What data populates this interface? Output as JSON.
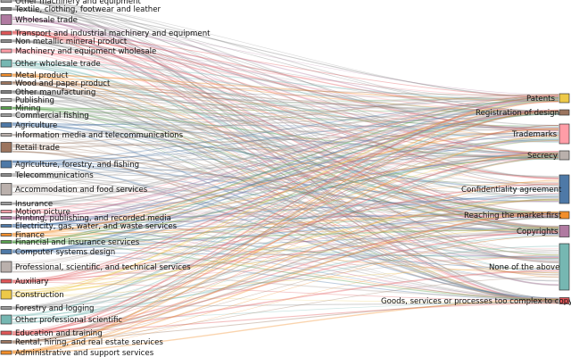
{
  "diagram": {
    "type": "sankey",
    "left_nodes": [
      {
        "label": "Other machinery and equipment",
        "color": "#9c9c9c"
      },
      {
        "label": "Textile, clothing, footwear and leather",
        "color": "#7a7a7a"
      },
      {
        "label": "Wholesale trade",
        "color": "#b07aa1"
      },
      {
        "label": "Transport and industrial machinery and equipment",
        "color": "#e15759"
      },
      {
        "label": "Non metallic mineral product",
        "color": "#8c8c8c"
      },
      {
        "label": "Machinery and equipment wholesale",
        "color": "#ff9da7"
      },
      {
        "label": "Other wholesale trade",
        "color": "#76b7b2"
      },
      {
        "label": "Metal product",
        "color": "#f28e2b"
      },
      {
        "label": "Wood and paper product",
        "color": "#9c755f"
      },
      {
        "label": "Other manufacturing",
        "color": "#7f7f7f"
      },
      {
        "label": "Publishing",
        "color": "#b5b5b5"
      },
      {
        "label": "Mining",
        "color": "#59a14f"
      },
      {
        "label": "Commercial fishing",
        "color": "#9d9d9d"
      },
      {
        "label": "Agriculture",
        "color": "#4e79a7"
      },
      {
        "label": "Information media and telecommunications",
        "color": "#bab0ac"
      },
      {
        "label": "Retail trade",
        "color": "#9c755f"
      },
      {
        "label": "Agriculture, forestry, and fishing",
        "color": "#4e79a7"
      },
      {
        "label": "Telecommunications",
        "color": "#8c8c8c"
      },
      {
        "label": "Accommodation and food services",
        "color": "#bab0ac"
      },
      {
        "label": "Insurance",
        "color": "#9c9c9c"
      },
      {
        "label": "Motion picture",
        "color": "#ff9da7"
      },
      {
        "label": "Printing, publishing, and recorded media",
        "color": "#b07aa1"
      },
      {
        "label": "Electricity, gas, water, and waste services",
        "color": "#4e79a7"
      },
      {
        "label": "Finance",
        "color": "#f28e2b"
      },
      {
        "label": "Financial and insurance services",
        "color": "#59a14f"
      },
      {
        "label": "Computer systems design",
        "color": "#4e79a7"
      },
      {
        "label": "Auxiliary",
        "color": "#e15759"
      },
      {
        "label": "Professional, scientific, and technical services",
        "color": "#bab0ac"
      },
      {
        "label": "Construction",
        "color": "#edc948"
      },
      {
        "label": "Forestry and logging",
        "color": "#9c9c9c"
      },
      {
        "label": "Other professional scientific",
        "color": "#76b7b2"
      },
      {
        "label": "Education and training",
        "color": "#e15759"
      },
      {
        "label": "Rental, hiring, and real estate services",
        "color": "#9c755f"
      },
      {
        "label": "Administrative and support services",
        "color": "#f28e2b"
      }
    ],
    "right_nodes": [
      {
        "label": "Patents",
        "color": "#edc948"
      },
      {
        "label": "Registration of design",
        "color": "#9c755f"
      },
      {
        "label": "Trademarks",
        "color": "#ff9da7"
      },
      {
        "label": "Secrecy",
        "color": "#bab0ac"
      },
      {
        "label": "Confidentiality agreement",
        "color": "#4e79a7"
      },
      {
        "label": "Reaching the market first",
        "color": "#f28e2b"
      },
      {
        "label": "Copyrights",
        "color": "#b07aa1"
      },
      {
        "label": "None of the above",
        "color": "#76b7b2"
      },
      {
        "label": "Goods, services or processes too complex to copy",
        "color": "#e15759"
      }
    ]
  }
}
